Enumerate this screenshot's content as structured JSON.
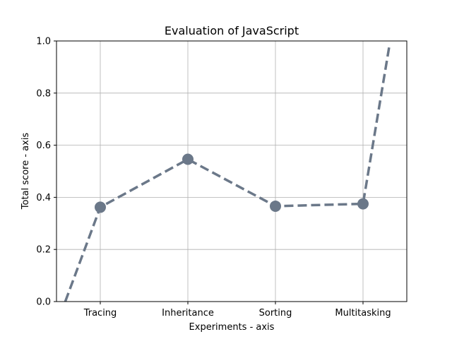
{
  "chart_data": {
    "type": "line",
    "title": "Evaluation of JavaScript",
    "xlabel": "Experiments - axis",
    "ylabel": "Total score - axis",
    "categories": [
      "Tracing",
      "Inheritance",
      "Sorting",
      "Multitasking"
    ],
    "series": [
      {
        "x": [
          -0.4,
          0,
          1,
          2,
          3,
          3.3
        ],
        "values": [
          0.0,
          0.362,
          0.546,
          0.366,
          0.375,
          0.98
        ],
        "marker_indices": [
          1,
          2,
          3,
          4
        ],
        "color": "#6b7889",
        "line_style": "dashed"
      }
    ],
    "xlim": [
      -0.5,
      3.5
    ],
    "ylim": [
      0.0,
      1.0
    ],
    "yticks": [
      "0.0",
      "0.2",
      "0.4",
      "0.6",
      "0.8",
      "1.0"
    ],
    "grid": true
  }
}
